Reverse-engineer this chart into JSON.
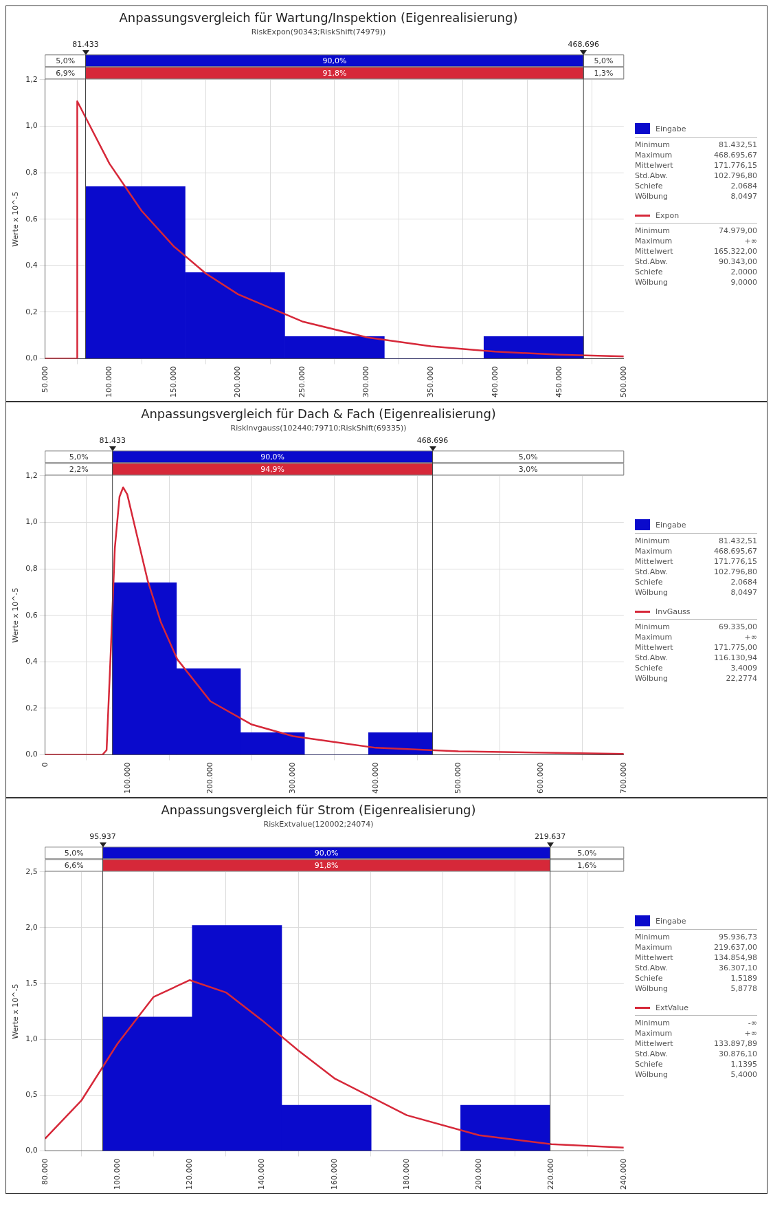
{
  "chart_data": [
    {
      "type": "histogram",
      "title": "Anpassungsvergleich für Wartung/Inspektion (Eigenrealisierung)",
      "subtitle": "RiskExpon(90343;RiskShift(74979))",
      "ylabel": "Werte x 10^-5",
      "bins": [
        81433,
        158886,
        236338,
        313791,
        391243,
        468696
      ],
      "series": [
        {
          "name": "Eingabe",
          "color": "#0a0acc",
          "values": [
            0.74,
            0.37,
            0.095,
            0,
            0.095
          ]
        },
        {
          "name": "Expon",
          "type": "line",
          "color": "#d62839",
          "x": [
            50000,
            74978,
            74979,
            100000,
            125000,
            150000,
            175000,
            200000,
            250000,
            300000,
            350000,
            400000,
            450000,
            500000
          ],
          "values": [
            0,
            0,
            1.107,
            0.839,
            0.636,
            0.483,
            0.366,
            0.277,
            0.16,
            0.092,
            0.053,
            0.03,
            0.017,
            0.01
          ]
        }
      ],
      "xlim": [
        50000,
        500000
      ],
      "xticks": [
        {
          "value": 50000,
          "label": "50.000"
        },
        {
          "value": 100000,
          "label": "100.000"
        },
        {
          "value": 150000,
          "label": "150.000"
        },
        {
          "value": 200000,
          "label": "200.000"
        },
        {
          "value": 250000,
          "label": "250.000"
        },
        {
          "value": 300000,
          "label": "300.000"
        },
        {
          "value": 350000,
          "label": "350.000"
        },
        {
          "value": 400000,
          "label": "400.000"
        },
        {
          "value": 450000,
          "label": "450.000"
        },
        {
          "value": 500000,
          "label": "500.000"
        }
      ],
      "ylim": [
        0,
        1.2
      ],
      "yticks": [
        {
          "value": 0,
          "label": "0,0"
        },
        {
          "value": 0.2,
          "label": "0,2"
        },
        {
          "value": 0.4,
          "label": "0,4"
        },
        {
          "value": 0.6,
          "label": "0,6"
        },
        {
          "value": 0.8,
          "label": "0,8"
        },
        {
          "value": 1,
          "label": "1,0"
        },
        {
          "value": 1.2,
          "label": "1,2"
        }
      ],
      "ref_lines": [
        {
          "axis": "x",
          "value": 81433,
          "label": "81.433"
        },
        {
          "axis": "x",
          "value": 468696,
          "label": "468.696"
        }
      ],
      "annotations": [
        "5,0%",
        "90,0%",
        "5,0%",
        "6,9%",
        "91,8%",
        "1,3%",
        "Minimum",
        "81.432,51",
        "Maximum",
        "468.695,67",
        "Mittelwert",
        "171.776,15",
        "Std.Abw.",
        "102.796,80",
        "Schiefe",
        "2,0684",
        "Wölbung",
        "8,0497",
        "Minimum",
        "74.979,00",
        "Maximum",
        "+∞",
        "Mittelwert",
        "165.322,00",
        "Std.Abw.",
        "90.343,00",
        "Schiefe",
        "2,0000",
        "Wölbung",
        "9,0000"
      ],
      "grid": true,
      "legend": "right"
    },
    {
      "type": "histogram",
      "title": "Anpassungsvergleich für Dach & Fach (Eigenrealisierung)",
      "subtitle": "RiskInvgauss(102440;79710;RiskShift(69335))",
      "ylabel": "Werte x 10^-5",
      "bins": [
        81433,
        158886,
        236338,
        313791,
        391243,
        468696
      ],
      "series": [
        {
          "name": "Eingabe",
          "color": "#0a0acc",
          "values": [
            0.74,
            0.37,
            0.095,
            0,
            0.095
          ]
        },
        {
          "name": "InvGauss",
          "type": "line",
          "color": "#d62839",
          "x": [
            0,
            69335,
            74335,
            79335,
            84335,
            90000,
            94335,
            99335,
            110000,
            124000,
            140000,
            160000,
            200000,
            250000,
            300000,
            400000,
            500000,
            700000
          ],
          "values": [
            0,
            0,
            0.02,
            0.44,
            0.89,
            1.11,
            1.15,
            1.12,
            0.96,
            0.75,
            0.57,
            0.41,
            0.23,
            0.13,
            0.08,
            0.03,
            0.015,
            0.004
          ]
        }
      ],
      "xlim": [
        0,
        700000
      ],
      "xticks": [
        0,
        {
          "value": 100000,
          "label": "100.000"
        },
        {
          "value": 200000,
          "label": "200.000"
        },
        {
          "value": 300000,
          "label": "300.000"
        },
        {
          "value": 400000,
          "label": "400.000"
        },
        {
          "value": 500000,
          "label": "500.000"
        },
        {
          "value": 600000,
          "label": "600.000"
        },
        {
          "value": 700000,
          "label": "700.000"
        }
      ],
      "ylim": [
        0,
        1.2
      ],
      "yticks": [
        {
          "value": 0,
          "label": "0,0"
        },
        {
          "value": 0.2,
          "label": "0,2"
        },
        {
          "value": 0.4,
          "label": "0,4"
        },
        {
          "value": 0.6,
          "label": "0,6"
        },
        {
          "value": 0.8,
          "label": "0,8"
        },
        {
          "value": 1,
          "label": "1,0"
        },
        {
          "value": 1.2,
          "label": "1,2"
        }
      ],
      "ref_lines": [
        {
          "axis": "x",
          "value": 81433,
          "label": "81.433"
        },
        {
          "axis": "x",
          "value": 468696,
          "label": "468.696"
        }
      ],
      "annotations": [
        "5,0%",
        "90,0%",
        "5,0%",
        "2,2%",
        "94,9%",
        "3,0%",
        "Minimum",
        "81.432,51",
        "Maximum",
        "468.695,67",
        "Mittelwert",
        "171.776,15",
        "Std.Abw.",
        "102.796,80",
        "Schiefe",
        "2,0684",
        "Wölbung",
        "8,0497",
        "Minimum",
        "69.335,00",
        "Maximum",
        "+∞",
        "Mittelwert",
        "171.775,00",
        "Std.Abw.",
        "116.130,94",
        "Schiefe",
        "3,4009",
        "Wölbung",
        "22,2774"
      ],
      "grid": true,
      "legend": "right"
    },
    {
      "type": "histogram",
      "title": "Anpassungsvergleich für Strom (Eigenrealisierung)",
      "subtitle": "RiskExtvalue(120002;24074)",
      "ylabel": "Werte x 10^-5",
      "bins": [
        95937,
        120677,
        145417,
        170157,
        194897,
        219637
      ],
      "series": [
        {
          "name": "Eingabe",
          "color": "#0a0acc",
          "values": [
            1.2,
            2.02,
            0.41,
            0,
            0.41
          ]
        },
        {
          "name": "ExtValue",
          "type": "line",
          "color": "#d62839",
          "x": [
            80000,
            90000,
            100000,
            110000,
            120000,
            130000,
            140000,
            150000,
            160000,
            180000,
            200000,
            220000,
            240000
          ],
          "values": [
            0.11,
            0.45,
            0.96,
            1.38,
            1.53,
            1.42,
            1.17,
            0.9,
            0.65,
            0.32,
            0.14,
            0.06,
            0.03
          ]
        }
      ],
      "xlim": [
        80000,
        240000
      ],
      "xticks": [
        {
          "value": 80000,
          "label": "80.000"
        },
        {
          "value": 100000,
          "label": "100.000"
        },
        {
          "value": 120000,
          "label": "120.000"
        },
        {
          "value": 140000,
          "label": "140.000"
        },
        {
          "value": 160000,
          "label": "160.000"
        },
        {
          "value": 180000,
          "label": "180.000"
        },
        {
          "value": 200000,
          "label": "200.000"
        },
        {
          "value": 220000,
          "label": "220.000"
        },
        {
          "value": 240000,
          "label": "240.000"
        }
      ],
      "ylim": [
        0,
        2.5
      ],
      "yticks": [
        {
          "value": 0,
          "label": "0,0"
        },
        {
          "value": 0.5,
          "label": "0,5"
        },
        {
          "value": 1,
          "label": "1,0"
        },
        {
          "value": 1.5,
          "label": "1,5"
        },
        {
          "value": 2,
          "label": "2,0"
        },
        {
          "value": 2.5,
          "label": "2,5"
        }
      ],
      "ref_lines": [
        {
          "axis": "x",
          "value": 95937,
          "label": "95.937"
        },
        {
          "axis": "x",
          "value": 219637,
          "label": "219.637"
        }
      ],
      "annotations": [
        "5,0%",
        "90,0%",
        "5,0%",
        "6,6%",
        "91,8%",
        "1,6%",
        "Minimum",
        "95.936,73",
        "Maximum",
        "219.637,00",
        "Mittelwert",
        "134.854,98",
        "Std.Abw.",
        "36.307,10",
        "Schiefe",
        "1,5189",
        "Wölbung",
        "5,8778",
        "Minimum",
        "-∞",
        "Maximum",
        "+∞",
        "Mittelwert",
        "133.897,89",
        "Std.Abw.",
        "30.876,10",
        "Schiefe",
        "1,1395",
        "Wölbung",
        "5,4000"
      ],
      "grid": true,
      "legend": "right"
    }
  ]
}
